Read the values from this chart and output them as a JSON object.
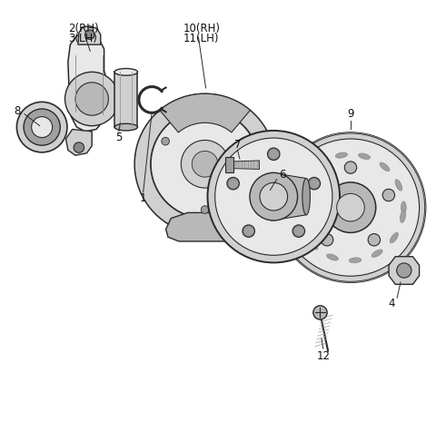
{
  "bg_color": "#ffffff",
  "lc": "#2a2a2a",
  "lw": 1.0,
  "figsize": [
    4.8,
    4.86
  ],
  "dpi": 100,
  "xlim": [
    0,
    10
  ],
  "ylim": [
    0,
    10
  ],
  "label_fontsize": 8.5,
  "label_color": "#111111"
}
